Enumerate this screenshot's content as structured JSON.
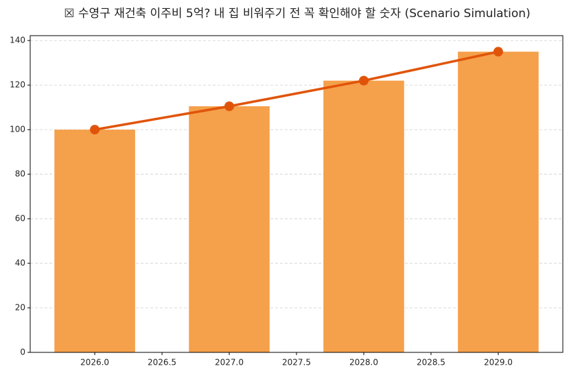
{
  "chart_data": {
    "type": "bar",
    "title": "☒ 수영구 재건축 이주비 5억? 내 집 비워주기 전 꼭 확인해야 할 숫자 (Scenario Simulation)",
    "x": [
      2026,
      2027,
      2028,
      2029
    ],
    "bar_width": 0.6,
    "series": [
      {
        "type": "bar",
        "color": "#f5a04a",
        "values": [
          100,
          110.5,
          122,
          135
        ]
      },
      {
        "type": "line",
        "color": "#e0540a",
        "values": [
          100,
          110.5,
          122,
          135
        ]
      }
    ],
    "xlim": [
      2025.52,
      2029.48
    ],
    "xticks": [
      {
        "value": 2026,
        "label": "2026.0"
      },
      {
        "value": 2026.5,
        "label": "2026.5"
      },
      {
        "value": 2027,
        "label": "2027.0"
      },
      {
        "value": 2027.5,
        "label": "2027.5"
      },
      {
        "value": 2028,
        "label": "2028.0"
      },
      {
        "value": 2028.5,
        "label": "2028.5"
      },
      {
        "value": 2029,
        "label": "2029.0"
      }
    ],
    "ylim": [
      0,
      142.2
    ],
    "yticks": [
      0,
      20,
      40,
      60,
      80,
      100,
      120,
      140
    ],
    "grid": true
  }
}
